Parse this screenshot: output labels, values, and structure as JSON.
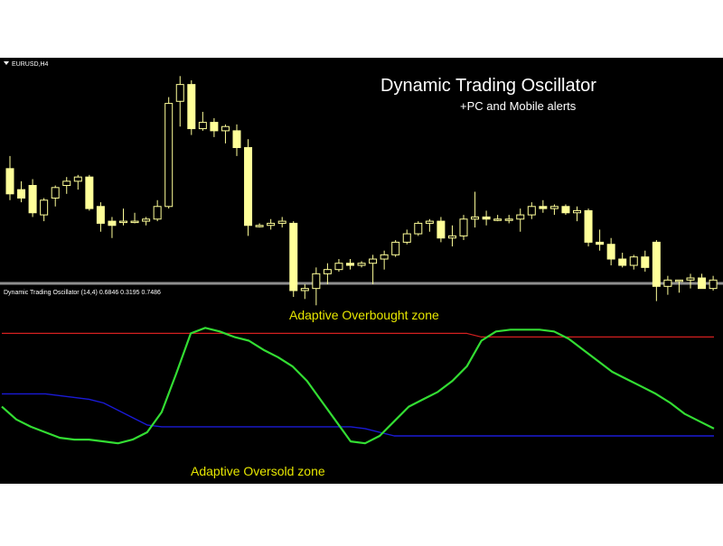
{
  "colors": {
    "background": "#000000",
    "candle": "#ffff99",
    "divider": "#8f8f8f",
    "overbought_line": "#d41f1f",
    "oversold_line": "#1a1ad6",
    "oscillator_line": "#33dd33",
    "annotation_text": "#e6e600",
    "title_text": "#ffffff"
  },
  "header": {
    "symbol_label": "EURUSD,H4",
    "title": "Dynamic Trading  Oscillator",
    "subtitle": "+PC and Mobile alerts"
  },
  "indicator_panel": {
    "label": "Dynamic Trading Oscillator (14,4) 0.6846 0.3195 0.7486"
  },
  "annotations": {
    "overbought": "Adaptive Overbought zone",
    "oversold": "Adaptive Oversold zone"
  },
  "chart_data": [
    {
      "type": "candlestick",
      "symbol": "EURUSD",
      "timeframe": "H4",
      "note": "values on a relative price scale; axis not printed",
      "ylim": [
        0,
        100
      ],
      "candles": [
        {
          "o": 52,
          "h": 58,
          "l": 37,
          "c": 40
        },
        {
          "o": 42,
          "h": 46,
          "l": 36,
          "c": 38
        },
        {
          "o": 44,
          "h": 47,
          "l": 29,
          "c": 31
        },
        {
          "o": 30,
          "h": 38,
          "l": 27,
          "c": 37
        },
        {
          "o": 38,
          "h": 44,
          "l": 34,
          "c": 43
        },
        {
          "o": 44,
          "h": 48,
          "l": 40,
          "c": 46
        },
        {
          "o": 46,
          "h": 49,
          "l": 42,
          "c": 48
        },
        {
          "o": 48,
          "h": 49,
          "l": 32,
          "c": 33
        },
        {
          "o": 34,
          "h": 36,
          "l": 22,
          "c": 26
        },
        {
          "o": 27,
          "h": 29,
          "l": 19,
          "c": 25
        },
        {
          "o": 27,
          "h": 33,
          "l": 25,
          "c": 27
        },
        {
          "o": 27,
          "h": 31,
          "l": 26,
          "c": 27
        },
        {
          "o": 27,
          "h": 29,
          "l": 25,
          "c": 28
        },
        {
          "o": 28,
          "h": 37,
          "l": 27,
          "c": 34
        },
        {
          "o": 34,
          "h": 86,
          "l": 33,
          "c": 83
        },
        {
          "o": 84,
          "h": 96,
          "l": 72,
          "c": 92
        },
        {
          "o": 92,
          "h": 94,
          "l": 68,
          "c": 71
        },
        {
          "o": 71,
          "h": 79,
          "l": 70,
          "c": 74
        },
        {
          "o": 74,
          "h": 76,
          "l": 67,
          "c": 70
        },
        {
          "o": 70,
          "h": 73,
          "l": 64,
          "c": 72
        },
        {
          "o": 70,
          "h": 73,
          "l": 58,
          "c": 62
        },
        {
          "o": 62,
          "h": 66,
          "l": 20,
          "c": 25
        },
        {
          "o": 25,
          "h": 26,
          "l": 24,
          "c": 25
        },
        {
          "o": 25,
          "h": 28,
          "l": 23,
          "c": 26
        },
        {
          "o": 26,
          "h": 29,
          "l": 24,
          "c": 27
        },
        {
          "o": 26,
          "h": 27,
          "l": -9,
          "c": -6
        },
        {
          "o": -6,
          "h": -3,
          "l": -10,
          "c": -5
        },
        {
          "o": -5,
          "h": 5,
          "l": -13,
          "c": 2
        },
        {
          "o": 2,
          "h": 7,
          "l": -3,
          "c": 4
        },
        {
          "o": 4,
          "h": 9,
          "l": 3,
          "c": 7
        },
        {
          "o": 7,
          "h": 9,
          "l": 4,
          "c": 6
        },
        {
          "o": 6,
          "h": 8,
          "l": 5,
          "c": 7
        },
        {
          "o": 7,
          "h": 11,
          "l": -3,
          "c": 9
        },
        {
          "o": 9,
          "h": 13,
          "l": 4,
          "c": 11
        },
        {
          "o": 11,
          "h": 18,
          "l": 10,
          "c": 17
        },
        {
          "o": 17,
          "h": 23,
          "l": 16,
          "c": 21
        },
        {
          "o": 21,
          "h": 27,
          "l": 20,
          "c": 26
        },
        {
          "o": 26,
          "h": 28,
          "l": 22,
          "c": 27
        },
        {
          "o": 27,
          "h": 29,
          "l": 17,
          "c": 19
        },
        {
          "o": 19,
          "h": 25,
          "l": 15,
          "c": 20
        },
        {
          "o": 20,
          "h": 30,
          "l": 18,
          "c": 28
        },
        {
          "o": 28,
          "h": 41,
          "l": 24,
          "c": 29
        },
        {
          "o": 29,
          "h": 32,
          "l": 25,
          "c": 28
        },
        {
          "o": 28,
          "h": 30,
          "l": 27,
          "c": 28
        },
        {
          "o": 28,
          "h": 30,
          "l": 26,
          "c": 28
        },
        {
          "o": 28,
          "h": 33,
          "l": 22,
          "c": 30
        },
        {
          "o": 30,
          "h": 36,
          "l": 28,
          "c": 34
        },
        {
          "o": 34,
          "h": 37,
          "l": 31,
          "c": 33
        },
        {
          "o": 33,
          "h": 35,
          "l": 30,
          "c": 34
        },
        {
          "o": 34,
          "h": 35,
          "l": 30,
          "c": 31
        },
        {
          "o": 31,
          "h": 34,
          "l": 27,
          "c": 32
        },
        {
          "o": 32,
          "h": 33,
          "l": 15,
          "c": 17
        },
        {
          "o": 17,
          "h": 23,
          "l": 13,
          "c": 16
        },
        {
          "o": 16,
          "h": 19,
          "l": 6,
          "c": 9
        },
        {
          "o": 9,
          "h": 12,
          "l": 5,
          "c": 6
        },
        {
          "o": 6,
          "h": 11,
          "l": 4,
          "c": 10
        },
        {
          "o": 10,
          "h": 13,
          "l": 3,
          "c": 5
        },
        {
          "o": 17,
          "h": 18,
          "l": -11,
          "c": -4
        },
        {
          "o": -4,
          "h": 1,
          "l": -8,
          "c": -1
        },
        {
          "o": -1,
          "h": -1,
          "l": -7,
          "c": -1
        },
        {
          "o": -1,
          "h": 2,
          "l": -5,
          "c": 0
        },
        {
          "o": 0,
          "h": 2,
          "l": -5,
          "c": -5
        },
        {
          "o": -5,
          "h": 1,
          "l": -6,
          "c": -1
        }
      ]
    },
    {
      "type": "line",
      "title": "Dynamic Trading Oscillator (14,4)",
      "readout": [
        0.6846,
        0.3195,
        0.7486
      ],
      "ylim": [
        0,
        1
      ],
      "x": [
        0,
        4,
        8,
        12,
        16,
        20,
        24,
        28,
        32,
        36,
        40,
        44,
        48,
        52,
        56,
        60,
        64,
        68,
        72,
        76,
        80,
        84,
        88,
        92,
        96,
        100,
        104,
        108,
        112,
        116,
        120,
        124,
        128,
        132,
        136,
        140,
        144,
        148,
        152,
        156,
        160,
        164,
        168,
        172,
        176,
        180,
        184,
        188,
        192,
        196
      ],
      "series": [
        {
          "name": "oscillator",
          "values": [
            0.48,
            0.41,
            0.37,
            0.34,
            0.31,
            0.3,
            0.3,
            0.29,
            0.28,
            0.3,
            0.34,
            0.45,
            0.66,
            0.88,
            0.91,
            0.89,
            0.86,
            0.84,
            0.79,
            0.75,
            0.7,
            0.62,
            0.51,
            0.4,
            0.29,
            0.28,
            0.32,
            0.4,
            0.48,
            0.52,
            0.56,
            0.62,
            0.7,
            0.84,
            0.89,
            0.9,
            0.9,
            0.9,
            0.89,
            0.85,
            0.79,
            0.73,
            0.67,
            0.63,
            0.59,
            0.55,
            0.5,
            0.44,
            0.4,
            0.36
          ]
        },
        {
          "name": "overbought",
          "values": [
            0.88,
            0.88,
            0.88,
            0.88,
            0.88,
            0.88,
            0.88,
            0.88,
            0.88,
            0.88,
            0.88,
            0.88,
            0.88,
            0.88,
            0.88,
            0.88,
            0.88,
            0.88,
            0.88,
            0.88,
            0.88,
            0.88,
            0.88,
            0.88,
            0.88,
            0.88,
            0.88,
            0.88,
            0.88,
            0.88,
            0.88,
            0.88,
            0.88,
            0.86,
            0.86,
            0.86,
            0.86,
            0.86,
            0.86,
            0.86,
            0.86,
            0.86,
            0.86,
            0.86,
            0.86,
            0.86,
            0.86,
            0.86,
            0.86,
            0.86
          ]
        },
        {
          "name": "oversold",
          "values": [
            0.55,
            0.55,
            0.55,
            0.55,
            0.54,
            0.53,
            0.52,
            0.5,
            0.46,
            0.42,
            0.38,
            0.37,
            0.37,
            0.37,
            0.37,
            0.37,
            0.37,
            0.37,
            0.37,
            0.37,
            0.37,
            0.37,
            0.37,
            0.37,
            0.37,
            0.36,
            0.34,
            0.32,
            0.32,
            0.32,
            0.32,
            0.32,
            0.32,
            0.32,
            0.32,
            0.32,
            0.32,
            0.32,
            0.32,
            0.32,
            0.32,
            0.32,
            0.32,
            0.32,
            0.32,
            0.32,
            0.32,
            0.32,
            0.32,
            0.32
          ]
        }
      ]
    }
  ]
}
